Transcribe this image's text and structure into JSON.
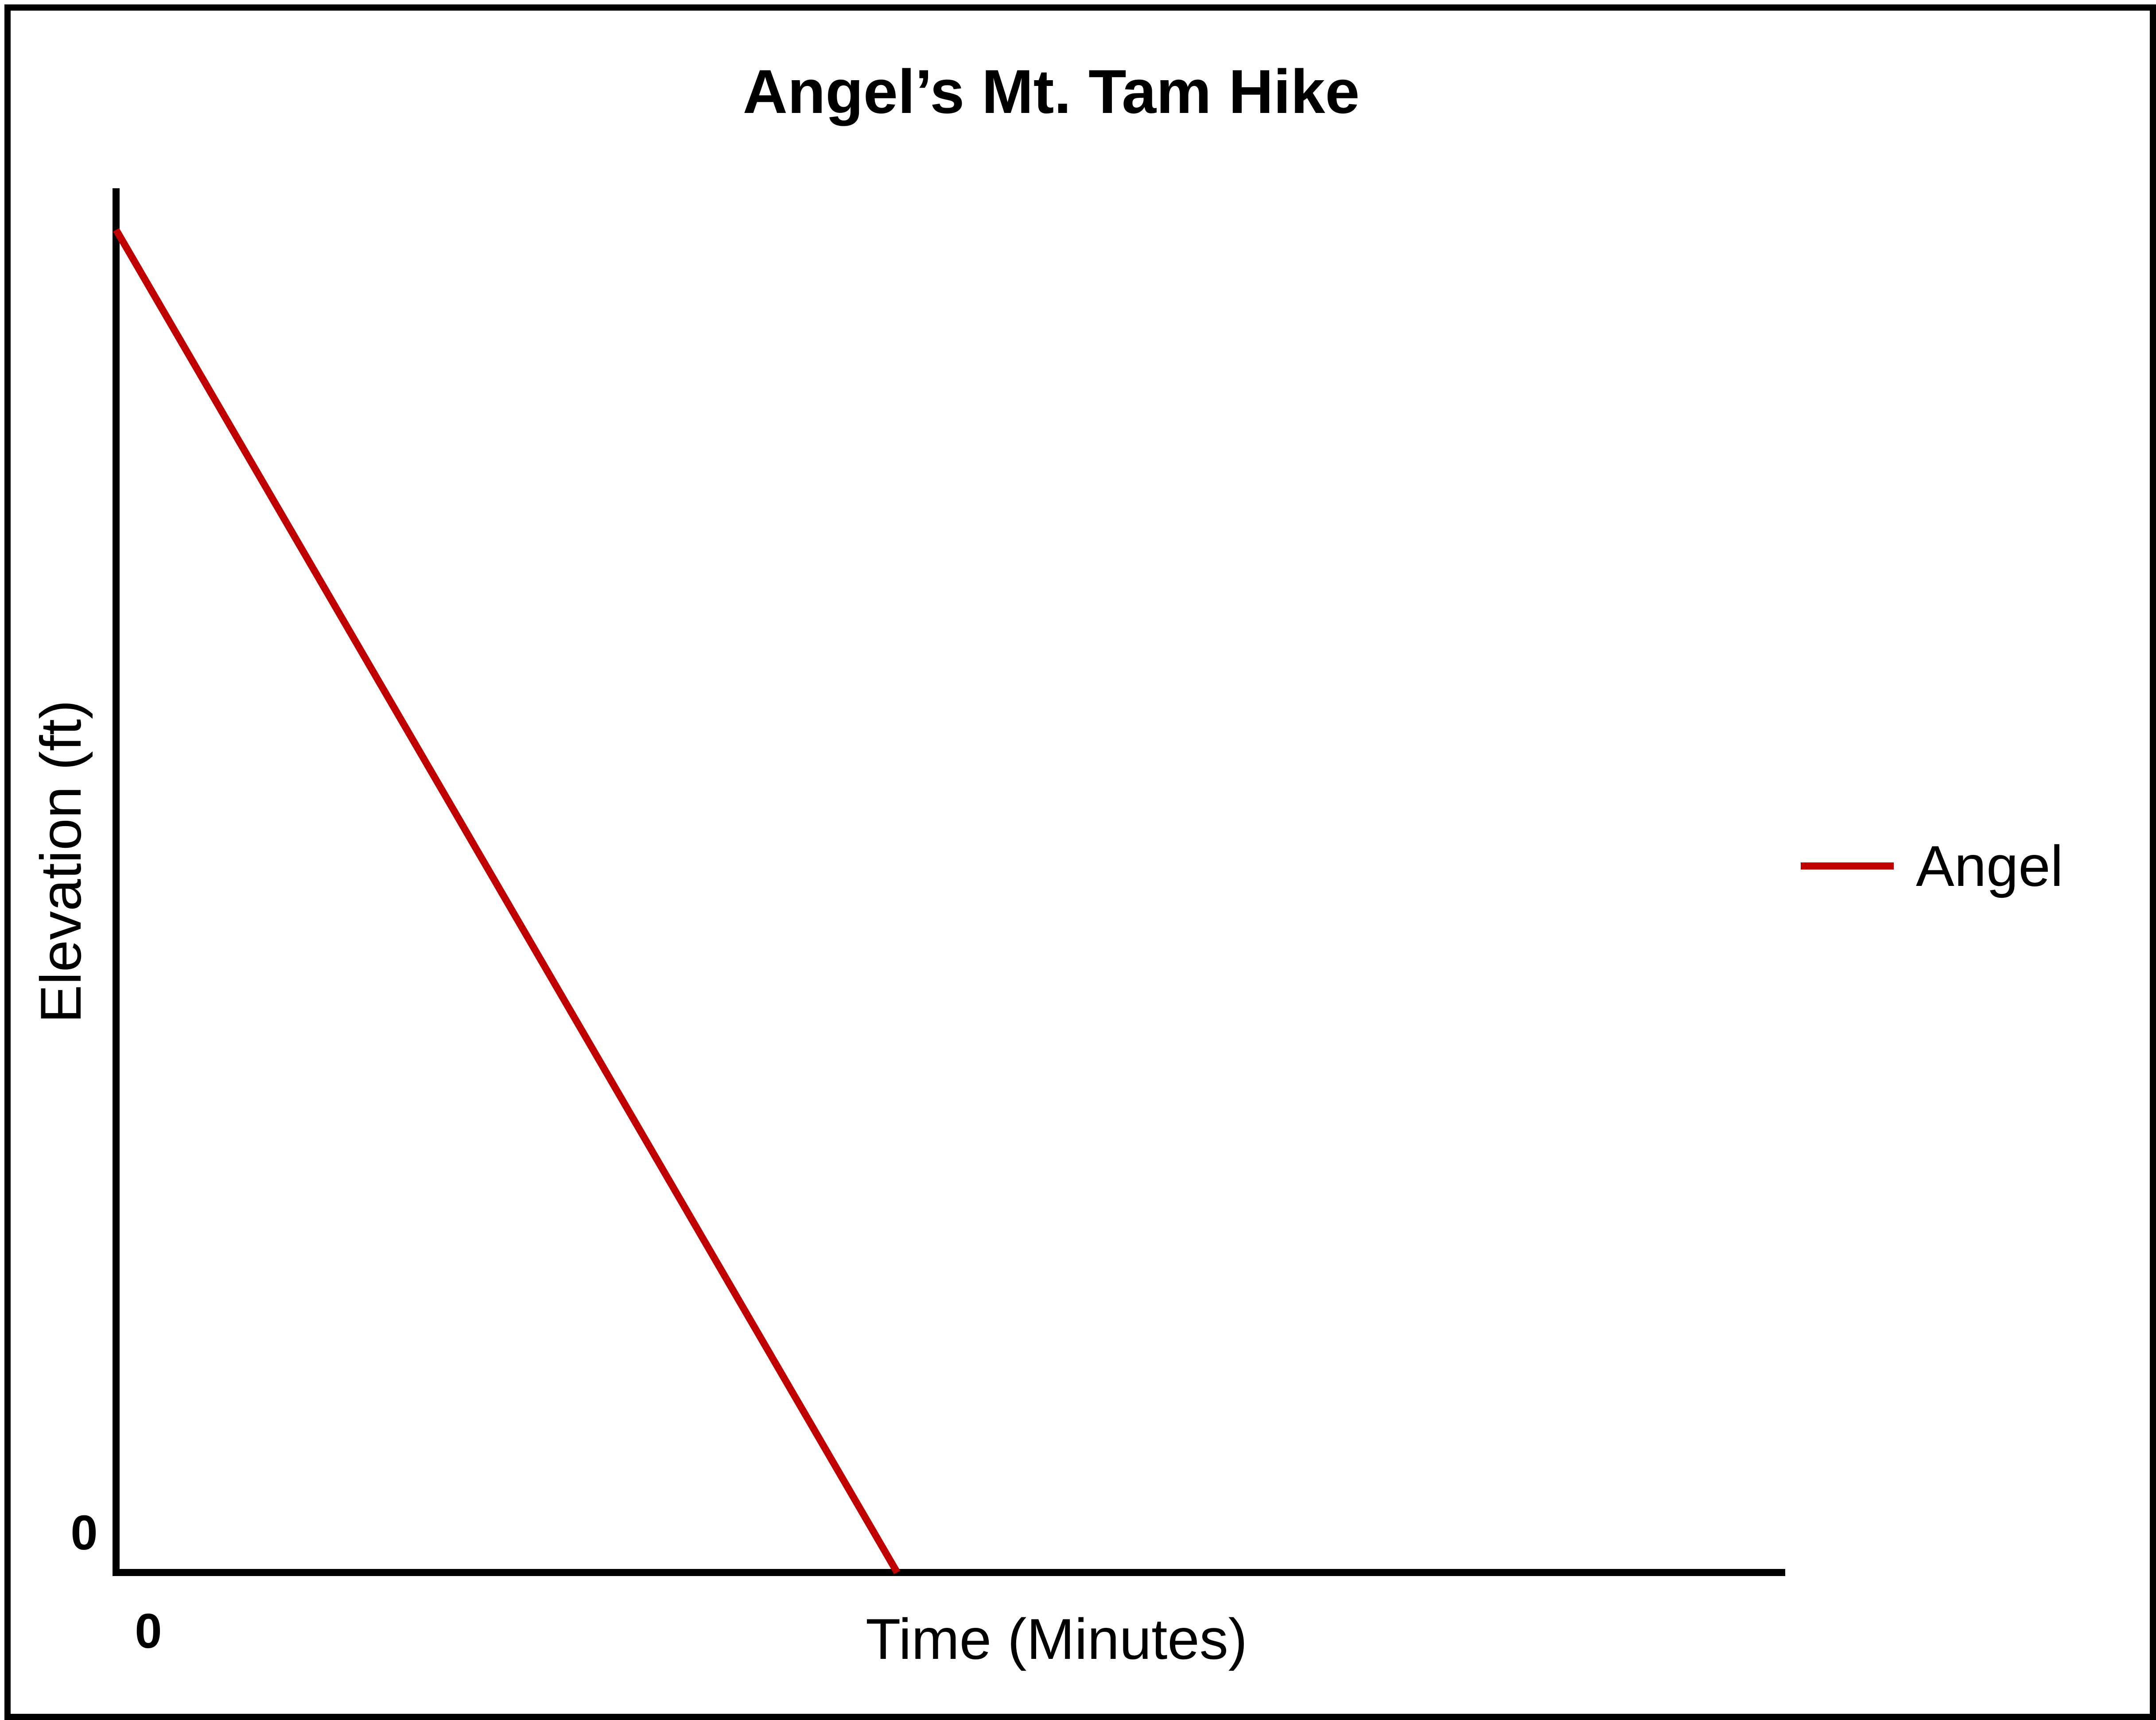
{
  "chart_data": {
    "type": "line",
    "title": "Angel’s Mt. Tam Hike",
    "xlabel": "Time (Minutes)",
    "ylabel": "Elevation (ft)",
    "x_tick_labels": [
      "0"
    ],
    "y_tick_labels": [
      "0"
    ],
    "xlim": [
      0,
      1
    ],
    "ylim": [
      0,
      1
    ],
    "grid": false,
    "legend_position": "right",
    "series": [
      {
        "name": "Angel",
        "color": "#C00000",
        "x": [
          0,
          0.468
        ],
        "y": [
          0.97,
          0
        ]
      }
    ]
  }
}
